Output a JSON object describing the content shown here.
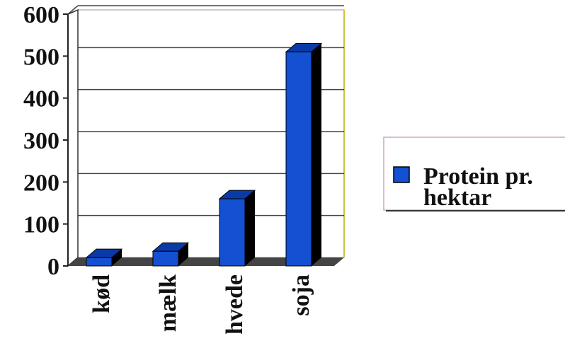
{
  "chart_data": {
    "type": "bar",
    "categories": [
      "kød",
      "mælk",
      "hvede",
      "soja"
    ],
    "series": [
      {
        "name": "Protein pr. hektar",
        "values": [
          20,
          35,
          160,
          510
        ],
        "color": "#1450d2"
      }
    ],
    "legend": {
      "lines": [
        "Protein pr.",
        "hektar"
      ],
      "placement": "right"
    },
    "ylim": [
      0,
      600
    ],
    "yticks": [
      0,
      100,
      200,
      300,
      400,
      500,
      600
    ],
    "grid": true,
    "colors": {
      "bar_front": "#1450d2",
      "bar_top": "#0a3aa8",
      "bar_side": "#000000",
      "floor": "#444444"
    }
  }
}
